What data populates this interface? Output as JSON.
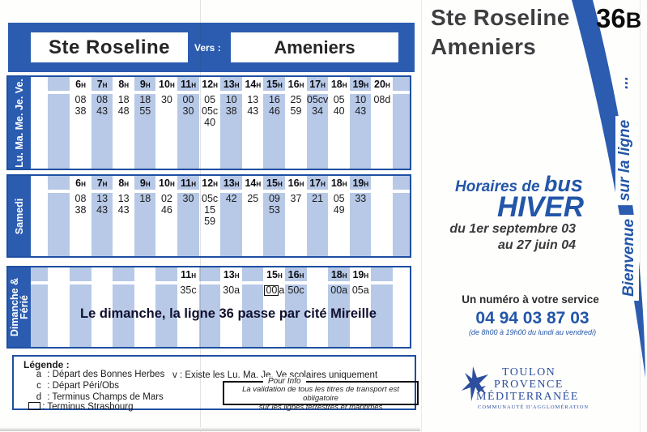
{
  "colors": {
    "brand_blue": "#2b5cb0",
    "border_blue": "#1e4fa1",
    "stripe_blue": "#b7c9e7",
    "accent_blue": "#2356a8",
    "logo_blue": "#2d4f9e"
  },
  "banner": {
    "from": "Ste Roseline",
    "vers": "Vers :",
    "to": "Ameniers"
  },
  "hour_suffix": "H",
  "timetables": [
    {
      "day_label_lines": [
        "Lu. Ma. Me. Je. Ve."
      ],
      "columns": [
        {
          "hour": "6",
          "times": [
            "08",
            "38"
          ]
        },
        {
          "hour": "7",
          "times": [
            "08",
            "43"
          ]
        },
        {
          "hour": "8",
          "times": [
            "18",
            "48"
          ]
        },
        {
          "hour": "9",
          "times": [
            "18",
            "55"
          ]
        },
        {
          "hour": "10",
          "times": [
            "30"
          ]
        },
        {
          "hour": "11",
          "times": [
            "00",
            "30"
          ]
        },
        {
          "hour": "12",
          "times": [
            "05",
            "05c",
            "40"
          ]
        },
        {
          "hour": "13",
          "times": [
            "10",
            "38"
          ]
        },
        {
          "hour": "14",
          "times": [
            "13",
            "43"
          ]
        },
        {
          "hour": "15",
          "times": [
            "16",
            "46"
          ]
        },
        {
          "hour": "16",
          "times": [
            "25",
            "59"
          ]
        },
        {
          "hour": "17",
          "times": [
            "05cv",
            "34"
          ]
        },
        {
          "hour": "18",
          "times": [
            "05",
            "40"
          ]
        },
        {
          "hour": "19",
          "times": [
            "10",
            "43"
          ]
        },
        {
          "hour": "20",
          "times": [
            "08d"
          ]
        }
      ]
    },
    {
      "day_label_lines": [
        "Samedi"
      ],
      "columns": [
        {
          "hour": "6",
          "times": [
            "08",
            "38"
          ]
        },
        {
          "hour": "7",
          "times": [
            "13",
            "43"
          ]
        },
        {
          "hour": "8",
          "times": [
            "13",
            "43"
          ]
        },
        {
          "hour": "9",
          "times": [
            "18"
          ]
        },
        {
          "hour": "10",
          "times": [
            "02",
            "46"
          ]
        },
        {
          "hour": "11",
          "times": [
            "30"
          ]
        },
        {
          "hour": "12",
          "times": [
            "05c",
            "15",
            "59"
          ]
        },
        {
          "hour": "13",
          "times": [
            "42"
          ]
        },
        {
          "hour": "14",
          "times": [
            "25"
          ]
        },
        {
          "hour": "15",
          "times": [
            "09",
            "53"
          ]
        },
        {
          "hour": "16",
          "times": [
            "37"
          ]
        },
        {
          "hour": "17",
          "times": [
            "21"
          ]
        },
        {
          "hour": "18",
          "times": [
            "05",
            "49"
          ]
        },
        {
          "hour": "19",
          "times": [
            "33"
          ]
        }
      ]
    },
    {
      "day_label_lines": [
        "Dimanche &",
        "Férié"
      ],
      "note": "Le dimanche, la ligne 36 passe par cité Mireille",
      "columns": [
        {
          "hour": "11",
          "times": [
            "35c"
          ],
          "slot": 5
        },
        {
          "hour": "13",
          "times": [
            "30a"
          ],
          "slot": 7
        },
        {
          "hour": "15",
          "times": [
            "[00]a"
          ],
          "slot": 9
        },
        {
          "hour": "16",
          "times": [
            "50c"
          ],
          "slot": 10
        },
        {
          "hour": "18",
          "times": [
            "00a"
          ],
          "slot": 12
        },
        {
          "hour": "19",
          "times": [
            "05a"
          ],
          "slot": 13
        }
      ]
    }
  ],
  "legend": {
    "title": "Légende :",
    "separator": ":",
    "items": [
      {
        "symbol": "a",
        "text": "Départ des Bonnes Herbes"
      },
      {
        "symbol": "c",
        "text": "Départ Péri/Obs"
      },
      {
        "symbol": "d",
        "text": "Terminus Champs de Mars"
      },
      {
        "symbol": "",
        "text": "Terminus Strasbourg"
      }
    ],
    "right_item": {
      "symbol": "v",
      "text": "Existe les Lu. Ma. Je. Ve scolaires uniquement"
    },
    "pour_info": {
      "title": "Pour Info",
      "line1": "La validation de tous les titres de transport est obligatoire",
      "line2": "sur les lignes terrestres et maritimes"
    }
  },
  "right_panel": {
    "title_line1": "Ste Roseline",
    "title_line2": "Ameniers",
    "line_badge_number": "36",
    "line_badge_letter": "B",
    "welcome": {
      "dots": "...",
      "word2": "sur la ligne",
      "word1": "Bienvenue"
    },
    "schedule": {
      "prefix": "Horaires de ",
      "bus": "bus",
      "season": "HIVER",
      "period1": "du 1er septembre 03",
      "period2": "au 27 juin 04"
    },
    "phone": {
      "intro": "Un numéro à votre service",
      "number": "04 94 03 87 03",
      "hours": "(de 8h00 à 19h00 du lundi au vendredi)"
    },
    "logo": {
      "line1": "TOULON",
      "line2": "PROVENCE",
      "line3": "MÉDITERRANÉE",
      "subtitle": "COMMUNAUTÉ D'AGGLOMÉRATION"
    }
  }
}
